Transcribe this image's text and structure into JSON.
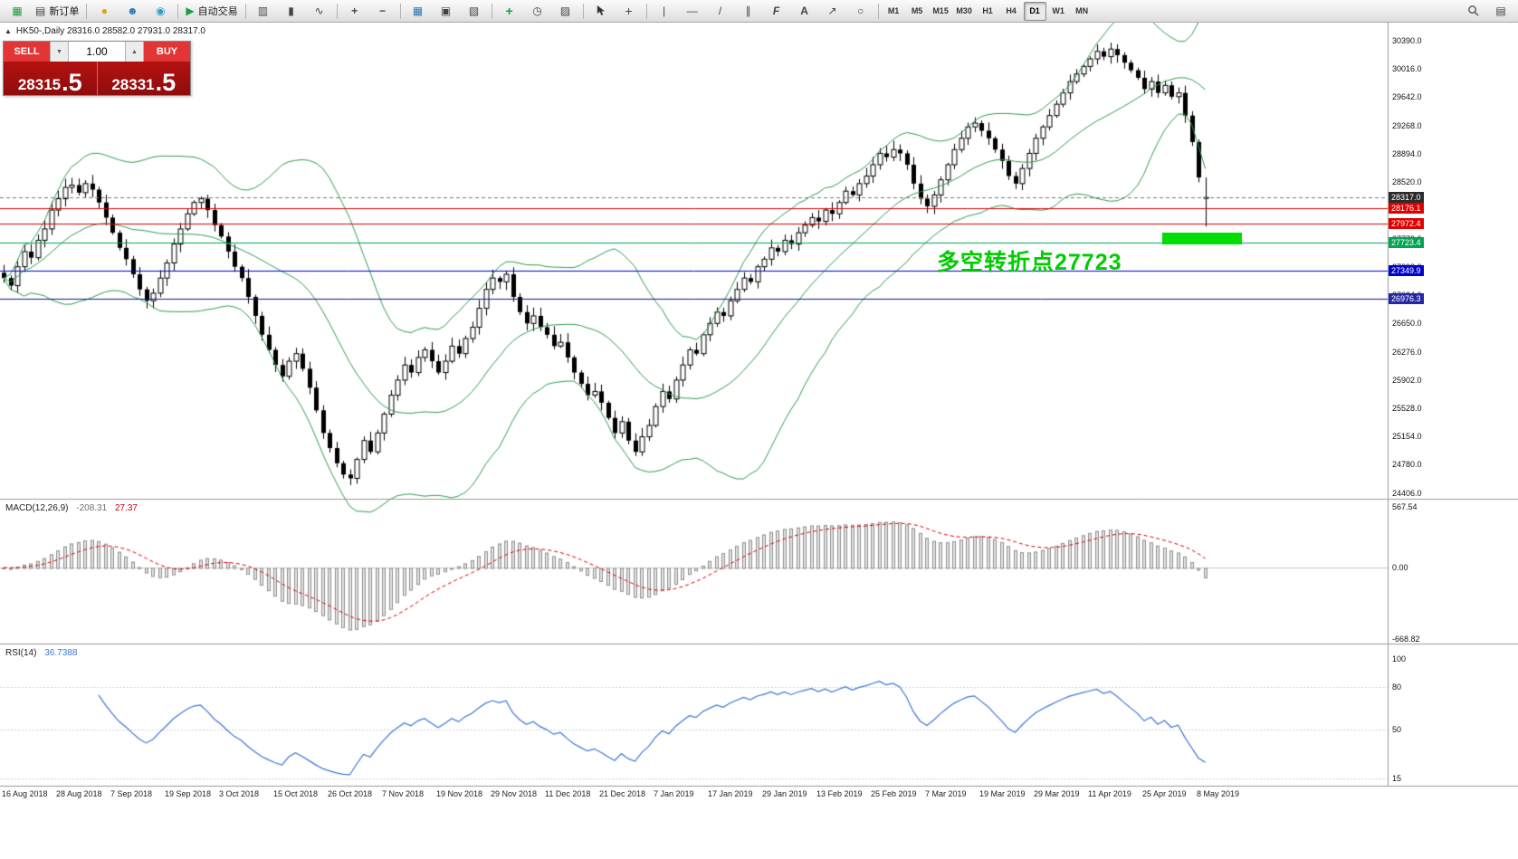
{
  "toolbar": {
    "new_order": "新订单",
    "autotrading": "自动交易",
    "timeframes": [
      "M1",
      "M5",
      "M15",
      "M30",
      "H1",
      "H4",
      "D1",
      "W1",
      "MN"
    ],
    "active_timeframe": "D1",
    "icons": {
      "new_chart": "▦",
      "new_order_doc": "▤",
      "gold": "●",
      "community": "☻",
      "support": "◉",
      "play": "▶",
      "bars": "▥",
      "candles": "▮",
      "line_chart": "∿",
      "zoom_in": "+",
      "zoom_out": "−",
      "tile": "▦",
      "data_window": "▣",
      "navigator": "▧",
      "add_indicator": "+",
      "periods": "◷",
      "template": "▨",
      "crosshair": "+",
      "vline": "|",
      "hline": "—",
      "trendline": "/",
      "channel": "∥",
      "fibonacci": "F",
      "text": "A",
      "arrows": "↗",
      "shapes": "○",
      "panels": "▤"
    }
  },
  "symbol_header": {
    "collapse_icon": "▲",
    "text": "HK50-,Daily  28316.0 28582.0 27931.0 28317.0"
  },
  "trade_panel": {
    "sell_label": "SELL",
    "buy_label": "BUY",
    "volume": "1.00",
    "spin_down": "▼",
    "spin_up": "▲",
    "sell_price_main": "28315",
    "sell_price_pips": ".5",
    "buy_price_main": "28331",
    "buy_price_pips": ".5"
  },
  "annotation": {
    "text": "多空转折点27723",
    "color": "#00cc00"
  },
  "highlight_bar": {
    "color": "#00dd00"
  },
  "macd_header": {
    "label": "MACD(12,26,9)",
    "value_main": "-208.31",
    "value_signal": "27.37"
  },
  "rsi_header": {
    "label": "RSI(14)",
    "value": "36.7388"
  },
  "chart_data": {
    "type": "candlestick+indicators",
    "main": {
      "title": "HK50-,Daily",
      "ohlc_current": [
        28316.0,
        28582.0,
        27931.0,
        28317.0
      ],
      "ylim": [
        24330,
        30630
      ],
      "y_ticks": [
        "30390.0",
        "30016.0",
        "29642.0",
        "29268.0",
        "28894.0",
        "28520.0",
        "28146.0",
        "27772.0",
        "27398.0",
        "27024.0",
        "26650.0",
        "26276.0",
        "25902.0",
        "25528.0",
        "25154.0",
        "24780.0",
        "24406.0"
      ],
      "x_labels": [
        "16 Aug 2018",
        "28 Aug 2018",
        "7 Sep 2018",
        "19 Sep 2018",
        "3 Oct 2018",
        "15 Oct 2018",
        "26 Oct 2018",
        "7 Nov 2018",
        "19 Nov 2018",
        "29 Nov 2018",
        "11 Dec 2018",
        "21 Dec 2018",
        "7 Jan 2019",
        "17 Jan 2019",
        "29 Jan 2019",
        "13 Feb 2019",
        "25 Feb 2019",
        "7 Mar 2019",
        "19 Mar 2019",
        "29 Mar 2019",
        "11 Apr 2019",
        "25 Apr 2019",
        "8 May 2019"
      ],
      "x_label_step": 8,
      "closes": [
        27250,
        27150,
        27400,
        27600,
        27520,
        27750,
        27900,
        28150,
        28300,
        28450,
        28480,
        28380,
        28500,
        28420,
        28250,
        28050,
        27850,
        27650,
        27500,
        27300,
        27100,
        26950,
        27050,
        27250,
        27450,
        27700,
        27900,
        28100,
        28250,
        28300,
        28150,
        27950,
        27800,
        27600,
        27400,
        27250,
        27000,
        26750,
        26500,
        26300,
        26100,
        25950,
        26150,
        26250,
        26050,
        25800,
        25500,
        25200,
        25000,
        24800,
        24650,
        24600,
        24850,
        25100,
        24950,
        25200,
        25450,
        25700,
        25900,
        26100,
        26000,
        26200,
        26300,
        26150,
        26000,
        26150,
        26350,
        26250,
        26450,
        26600,
        26850,
        27100,
        27250,
        27200,
        27300,
        27000,
        26800,
        26650,
        26750,
        26600,
        26500,
        26350,
        26400,
        26200,
        26000,
        25850,
        25700,
        25750,
        25600,
        25400,
        25200,
        25350,
        25100,
        24950,
        25150,
        25300,
        25550,
        25750,
        25650,
        25900,
        26100,
        26300,
        26250,
        26500,
        26650,
        26800,
        26750,
        26950,
        27100,
        27250,
        27200,
        27400,
        27500,
        27650,
        27600,
        27750,
        27700,
        27850,
        27950,
        28050,
        28000,
        28150,
        28100,
        28250,
        28400,
        28350,
        28500,
        28600,
        28750,
        28900,
        28850,
        28950,
        28900,
        28750,
        28500,
        28300,
        28200,
        28350,
        28550,
        28750,
        28950,
        29100,
        29250,
        29300,
        29200,
        29100,
        28950,
        28800,
        28600,
        28500,
        28700,
        28900,
        29100,
        29250,
        29400,
        29550,
        29700,
        29850,
        29950,
        30050,
        30150,
        30250,
        30180,
        30280,
        30200,
        30100,
        30000,
        29900,
        29750,
        29850,
        29700,
        29800,
        29650,
        29700,
        29400,
        29050,
        28582,
        28317
      ],
      "last_ohlc": [
        28316.0,
        28582.0,
        27931.0,
        28317.0
      ],
      "candle_up_color": "#ffffff",
      "candle_down_color": "#000000",
      "candle_outline": "#000000",
      "bollinger_period": 20,
      "bollinger_color": "#2f9e4f",
      "hlines": [
        {
          "price": 28317.0,
          "tag": "28317.0",
          "color": "#777777",
          "tag_bg": "#2b2b2b",
          "style": "dash"
        },
        {
          "price": 28176.1,
          "tag": "28176.1",
          "color": "#e00000",
          "tag_bg": "#e00000",
          "style": "solid"
        },
        {
          "price": 27972.4,
          "tag": "27972.4",
          "color": "#e00000",
          "tag_bg": "#e00000",
          "style": "solid"
        },
        {
          "price": 27723.4,
          "tag": "27723.4",
          "color": "#00a651",
          "tag_bg": "#00a651",
          "style": "solid"
        },
        {
          "price": 27349.9,
          "tag": "27349.9",
          "color": "#0000d0",
          "tag_bg": "#0000d0",
          "style": "solid"
        },
        {
          "price": 26976.3,
          "tag": "26976.3",
          "color": "#15158a",
          "tag_bg": "#2525a8",
          "style": "solid"
        }
      ]
    },
    "macd": {
      "params": [
        12,
        26,
        9
      ],
      "current_values": [
        -208.31,
        27.37
      ],
      "y_ticks": [
        "567.54",
        "0.00",
        "-668.82"
      ],
      "ylim": [
        -703,
        627
      ],
      "histogram_fill": "#e2e2e2",
      "histogram_outline": "#8f8f8f",
      "signal_color": "#e00000"
    },
    "rsi": {
      "period": 14,
      "current_value": 36.7388,
      "y_ticks": [
        "100",
        "80",
        "50",
        "15"
      ],
      "levels": [
        80,
        50,
        15
      ],
      "ylim": [
        9.8,
        110.3
      ],
      "line_color": "#3c78d8"
    }
  }
}
